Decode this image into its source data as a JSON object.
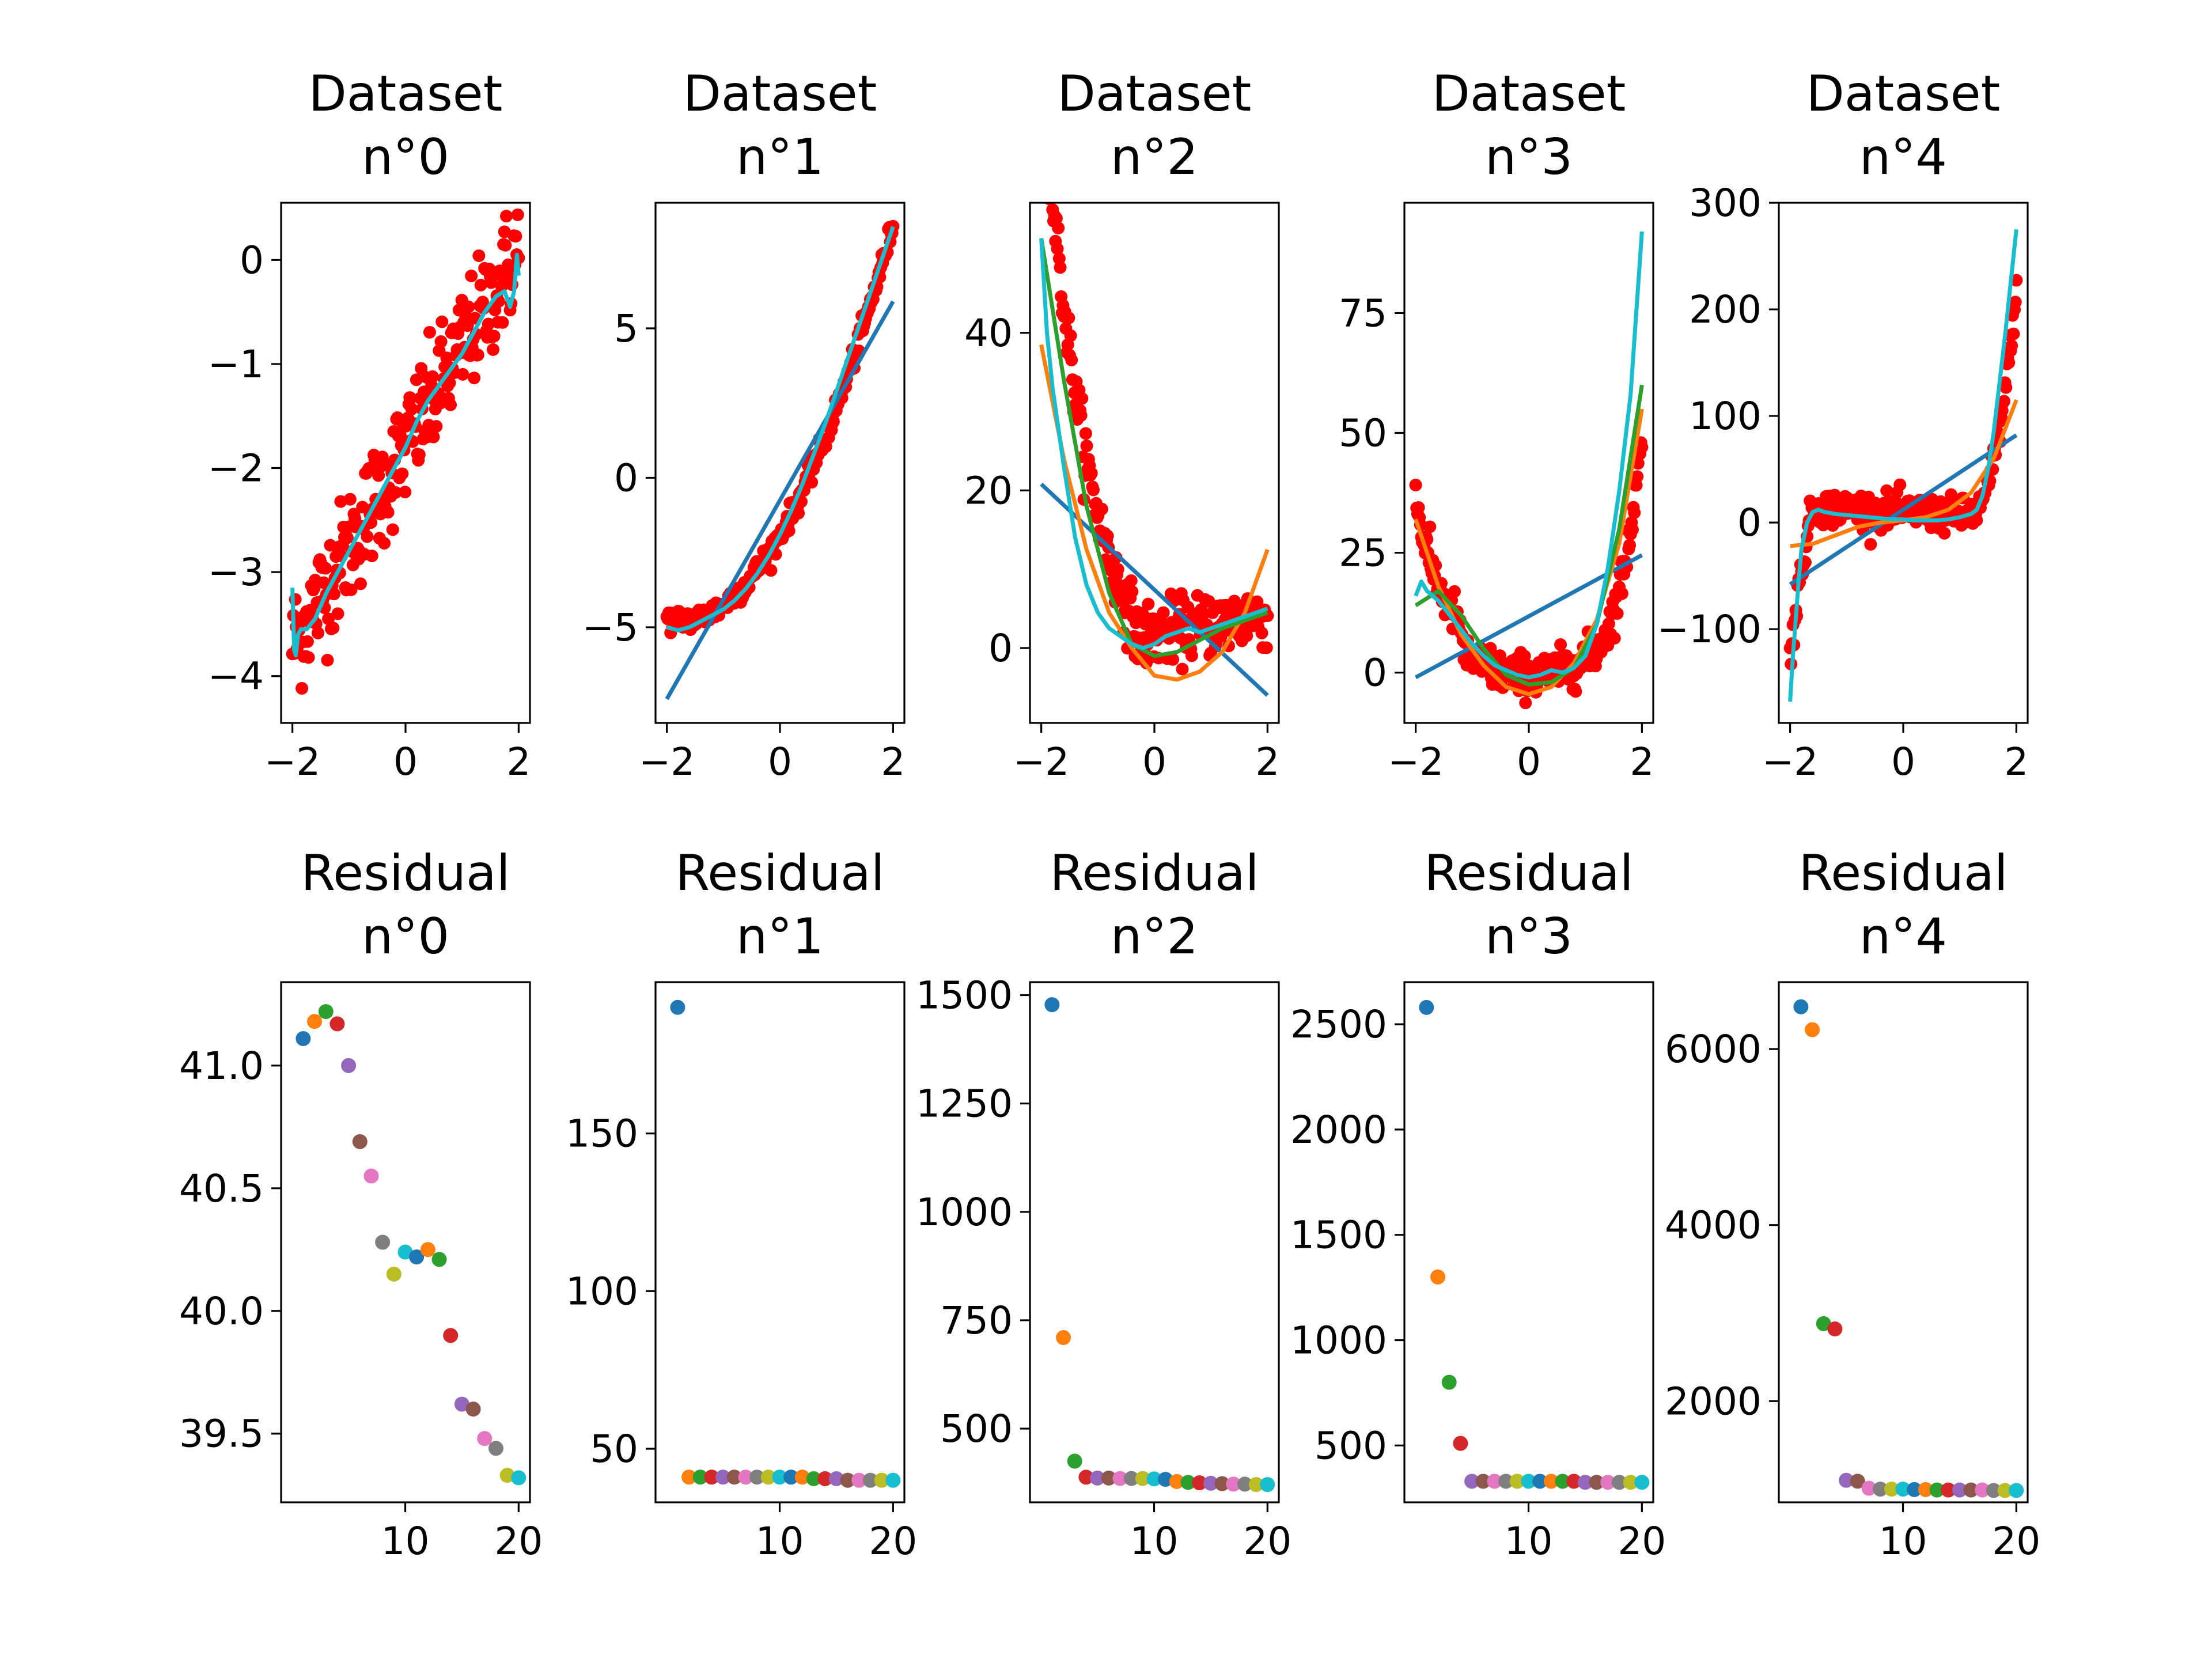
{
  "palette": [
    "#1f77b4",
    "#ff7f0e",
    "#2ca02c",
    "#d62728",
    "#9467bd",
    "#8c564b",
    "#e377c2",
    "#7f7f7f",
    "#bcbd22",
    "#17becf"
  ],
  "scatter_color": "#ff0000",
  "chart_data": [
    {
      "type": "scatter",
      "title": [
        "Dataset",
        "n°0"
      ],
      "xlim": [
        -2.2,
        2.2
      ],
      "ylim": [
        -4.45,
        0.55
      ],
      "xticks": [
        -2,
        0,
        2
      ],
      "yticks": [
        -4,
        -3,
        -2,
        -1,
        0
      ],
      "points_formula": "linear",
      "noise": 0.28,
      "fits": [
        {
          "degree": 20,
          "color": "#17becf",
          "x": [
            -2.0,
            -1.97,
            -1.94,
            -1.9,
            -1.85,
            -1.75,
            -1.6,
            -1.4,
            -1.2,
            -1.0,
            -0.8,
            -0.6,
            -0.4,
            -0.2,
            0,
            0.2,
            0.4,
            0.6,
            0.8,
            1.0,
            1.2,
            1.4,
            1.6,
            1.75,
            1.85,
            1.92,
            1.97,
            2.0
          ],
          "y": [
            -3.15,
            -3.75,
            -3.8,
            -3.6,
            -3.55,
            -3.55,
            -3.45,
            -3.2,
            -3.0,
            -2.8,
            -2.6,
            -2.4,
            -2.2,
            -2.0,
            -1.8,
            -1.55,
            -1.35,
            -1.2,
            -1.05,
            -0.9,
            -0.7,
            -0.5,
            -0.35,
            -0.3,
            -0.45,
            -0.3,
            0.05,
            -0.15
          ]
        }
      ]
    },
    {
      "type": "scatter",
      "title": [
        "Dataset",
        "n°1"
      ],
      "xlim": [
        -2.2,
        2.2
      ],
      "ylim": [
        -8.2,
        9.2
      ],
      "xticks": [
        -2,
        0,
        2
      ],
      "yticks": [
        -5,
        0,
        5
      ],
      "points_formula": "quad1",
      "noise": 0.2,
      "fits": [
        {
          "degree": 1,
          "color": "#1f77b4",
          "x": [
            -2,
            2
          ],
          "y": [
            -7.4,
            5.9
          ]
        },
        {
          "degree": 20,
          "color": "#17becf",
          "x": [
            -2,
            -1.8,
            -1.6,
            -1.4,
            -1.2,
            -1.0,
            -0.8,
            -0.6,
            -0.4,
            -0.2,
            0,
            0.2,
            0.4,
            0.6,
            0.8,
            1.0,
            1.2,
            1.4,
            1.6,
            1.8,
            2.0
          ],
          "y": [
            -5.0,
            -5.1,
            -5.0,
            -4.8,
            -4.6,
            -4.4,
            -4.1,
            -3.7,
            -3.2,
            -2.6,
            -1.9,
            -1.1,
            -0.2,
            0.8,
            1.8,
            2.9,
            4.0,
            5.1,
            6.2,
            7.3,
            8.4
          ]
        }
      ]
    },
    {
      "type": "scatter",
      "title": [
        "Dataset",
        "n°2"
      ],
      "xlim": [
        -2.2,
        2.2
      ],
      "ylim": [
        -9.5,
        56.5
      ],
      "xticks": [
        -2,
        0,
        2
      ],
      "yticks": [
        0,
        20,
        40
      ],
      "points_formula": "curve2",
      "noise": 2.0,
      "fits": [
        {
          "degree": 1,
          "color": "#1f77b4",
          "x": [
            -2,
            2
          ],
          "y": [
            20.8,
            -6.0
          ]
        },
        {
          "degree": 2,
          "color": "#ff7f0e",
          "x": [
            -2,
            -1.6,
            -1.2,
            -0.8,
            -0.4,
            0,
            0.4,
            0.8,
            1.2,
            1.6,
            2.0
          ],
          "y": [
            38.5,
            24.0,
            12.5,
            4.5,
            0,
            -3.5,
            -4.0,
            -3.0,
            -0.5,
            4.5,
            12.5
          ]
        },
        {
          "degree": 3,
          "color": "#2ca02c",
          "x": [
            -2,
            -1.6,
            -1.2,
            -0.8,
            -0.4,
            0,
            0.4,
            0.8,
            1.2,
            1.6,
            2.0
          ],
          "y": [
            52.0,
            34.0,
            18.0,
            7.0,
            0.5,
            -1.0,
            -0.5,
            1.0,
            2.5,
            3.5,
            4.5
          ]
        },
        {
          "degree": 20,
          "color": "#17becf",
          "x": [
            -2.0,
            -1.9,
            -1.8,
            -1.6,
            -1.4,
            -1.2,
            -1.0,
            -0.8,
            -0.6,
            -0.4,
            -0.2,
            0,
            0.2,
            0.4,
            0.6,
            0.8,
            1.0,
            1.2,
            1.4,
            1.6,
            1.8,
            2.0
          ],
          "y": [
            52.0,
            40.0,
            33.0,
            23.0,
            14.0,
            8.0,
            4.5,
            2.5,
            1.5,
            0.5,
            0,
            0.5,
            1.5,
            2.0,
            2.5,
            2.0,
            2.5,
            3.0,
            3.5,
            4.0,
            4.5,
            5.0
          ]
        }
      ]
    },
    {
      "type": "scatter",
      "title": [
        "Dataset",
        "n°3"
      ],
      "xlim": [
        -2.2,
        2.2
      ],
      "ylim": [
        -10.5,
        98
      ],
      "xticks": [
        -2,
        0,
        2
      ],
      "yticks": [
        0,
        25,
        50,
        75
      ],
      "points_formula": "curve3",
      "noise": 2.2,
      "fits": [
        {
          "degree": 1,
          "color": "#1f77b4",
          "x": [
            -2,
            2
          ],
          "y": [
            -1.0,
            24.5
          ]
        },
        {
          "degree": 2,
          "color": "#ff7f0e",
          "x": [
            -2,
            -1.6,
            -1.2,
            -0.8,
            -0.4,
            0,
            0.4,
            0.8,
            1.2,
            1.6,
            2.0
          ],
          "y": [
            32.0,
            18.0,
            8.0,
            1.5,
            -3.0,
            -4.5,
            -3.0,
            2.0,
            11.0,
            27.0,
            55.0
          ]
        },
        {
          "degree": 3,
          "color": "#2ca02c",
          "x": [
            -2,
            -1.6,
            -1.2,
            -0.8,
            -0.4,
            0,
            0.4,
            0.8,
            1.2,
            1.6,
            2.0
          ],
          "y": [
            14.0,
            17.0,
            12.0,
            5.0,
            -0.5,
            -2.5,
            -2.0,
            1.0,
            10.0,
            30.0,
            60.0
          ]
        },
        {
          "degree": 20,
          "color": "#17becf",
          "x": [
            -2.0,
            -1.9,
            -1.8,
            -1.6,
            -1.4,
            -1.2,
            -1.0,
            -0.8,
            -0.6,
            -0.4,
            -0.2,
            0,
            0.2,
            0.4,
            0.6,
            0.8,
            1.0,
            1.2,
            1.4,
            1.6,
            1.8,
            1.9,
            2.0
          ],
          "y": [
            16.0,
            19.0,
            17.0,
            15.0,
            12.0,
            9.0,
            6.0,
            3.5,
            1.5,
            0.5,
            -0.5,
            -1.0,
            -0.5,
            0.5,
            0,
            1.0,
            3.5,
            10.0,
            22.0,
            38.0,
            58.0,
            75.0,
            92.0
          ]
        }
      ]
    },
    {
      "type": "scatter",
      "title": [
        "Dataset",
        "n°4"
      ],
      "xlim": [
        -2.2,
        2.2
      ],
      "ylim": [
        -188,
        300
      ],
      "xticks": [
        -2,
        0,
        2
      ],
      "yticks": [
        -100,
        0,
        100,
        200,
        300
      ],
      "points_formula": "curve4",
      "noise": 8.0,
      "fits": [
        {
          "degree": 1,
          "color": "#1f77b4",
          "x": [
            -2,
            2
          ],
          "y": [
            -58,
            82
          ]
        },
        {
          "degree": 3,
          "color": "#ff7f0e",
          "x": [
            -2,
            -1.6,
            -1.2,
            -0.8,
            -0.4,
            0,
            0.4,
            0.8,
            1.2,
            1.6,
            2.0
          ],
          "y": [
            -22,
            -20,
            -12,
            -4,
            0,
            2,
            5,
            12,
            28,
            60,
            115
          ]
        },
        {
          "degree": 20,
          "color": "#17becf",
          "x": [
            -2.0,
            -1.95,
            -1.9,
            -1.85,
            -1.8,
            -1.7,
            -1.6,
            -1.5,
            -1.4,
            -1.2,
            -1.0,
            -0.8,
            -0.6,
            -0.4,
            -0.2,
            0,
            0.2,
            0.4,
            0.6,
            0.8,
            1.0,
            1.2,
            1.3,
            1.4,
            1.5,
            1.6,
            1.7,
            1.8,
            1.9,
            2.0
          ],
          "y": [
            -168,
            -125,
            -90,
            -55,
            -25,
            0,
            10,
            12,
            10,
            8,
            7,
            6,
            5,
            4,
            3,
            3,
            2,
            2,
            2,
            3,
            5,
            8,
            12,
            25,
            50,
            85,
            130,
            175,
            225,
            275
          ]
        }
      ]
    },
    {
      "type": "scatter",
      "title": [
        "Residual",
        "n°0"
      ],
      "xlim": [
        -0.95,
        21.0
      ],
      "ylim": [
        39.22,
        41.34
      ],
      "xticks": [
        10,
        20
      ],
      "yticks": [
        39.5,
        40.0,
        40.5,
        41.0
      ],
      "x": [
        1,
        2,
        3,
        4,
        5,
        6,
        7,
        8,
        9,
        10,
        11,
        12,
        13,
        14,
        15,
        16,
        17,
        18,
        19,
        20
      ],
      "values": [
        41.11,
        41.18,
        41.22,
        41.17,
        41.0,
        40.69,
        40.55,
        40.28,
        40.15,
        40.24,
        40.22,
        40.25,
        40.21,
        39.9,
        39.62,
        39.6,
        39.48,
        39.44,
        39.33,
        39.32
      ]
    },
    {
      "type": "scatter",
      "title": [
        "Residual",
        "n°1"
      ],
      "xlim": [
        -0.95,
        21.0
      ],
      "ylim": [
        33,
        198
      ],
      "xticks": [
        10,
        20
      ],
      "yticks": [
        50,
        100,
        150
      ],
      "x": [
        1,
        2,
        3,
        4,
        5,
        6,
        7,
        8,
        9,
        10,
        11,
        12,
        13,
        14,
        15,
        16,
        17,
        18,
        19,
        20
      ],
      "values": [
        190,
        41,
        41,
        41,
        41,
        41,
        41,
        41,
        41,
        41,
        41,
        41,
        40.5,
        40.5,
        40.5,
        40,
        40,
        40,
        40,
        40
      ]
    },
    {
      "type": "scatter",
      "title": [
        "Residual",
        "n°2"
      ],
      "xlim": [
        -0.95,
        21.0
      ],
      "ylim": [
        330,
        1530
      ],
      "xticks": [
        10,
        20
      ],
      "yticks": [
        500,
        750,
        1000,
        1250,
        1500
      ],
      "x": [
        1,
        2,
        3,
        4,
        5,
        6,
        7,
        8,
        9,
        10,
        11,
        12,
        13,
        14,
        15,
        16,
        17,
        18,
        19,
        20
      ],
      "values": [
        1478,
        710,
        425,
        388,
        386,
        386,
        385,
        385,
        385,
        384,
        383,
        378,
        376,
        375,
        374,
        373,
        372,
        372,
        371,
        371
      ]
    },
    {
      "type": "scatter",
      "title": [
        "Residual",
        "n°3"
      ],
      "xlim": [
        -0.95,
        21.0
      ],
      "ylim": [
        230,
        2700
      ],
      "xticks": [
        10,
        20
      ],
      "yticks": [
        500,
        1000,
        1500,
        2000,
        2500
      ],
      "x": [
        1,
        2,
        3,
        4,
        5,
        6,
        7,
        8,
        9,
        10,
        11,
        12,
        13,
        14,
        15,
        16,
        17,
        18,
        19,
        20
      ],
      "values": [
        2580,
        1300,
        800,
        510,
        330,
        330,
        330,
        330,
        330,
        330,
        330,
        330,
        330,
        330,
        325,
        325,
        325,
        325,
        325,
        325
      ]
    },
    {
      "type": "scatter",
      "title": [
        "Residual",
        "n°4"
      ],
      "xlim": [
        -0.95,
        21.0
      ],
      "ylim": [
        850,
        6760
      ],
      "xticks": [
        10,
        20
      ],
      "yticks": [
        2000,
        4000,
        6000
      ],
      "x": [
        1,
        2,
        3,
        4,
        5,
        6,
        7,
        8,
        9,
        10,
        11,
        12,
        13,
        14,
        15,
        16,
        17,
        18,
        19,
        20
      ],
      "values": [
        6480,
        6220,
        2880,
        2820,
        1100,
        1090,
        1010,
        1000,
        1000,
        1000,
        995,
        995,
        990,
        990,
        990,
        990,
        990,
        985,
        985,
        985
      ]
    }
  ]
}
